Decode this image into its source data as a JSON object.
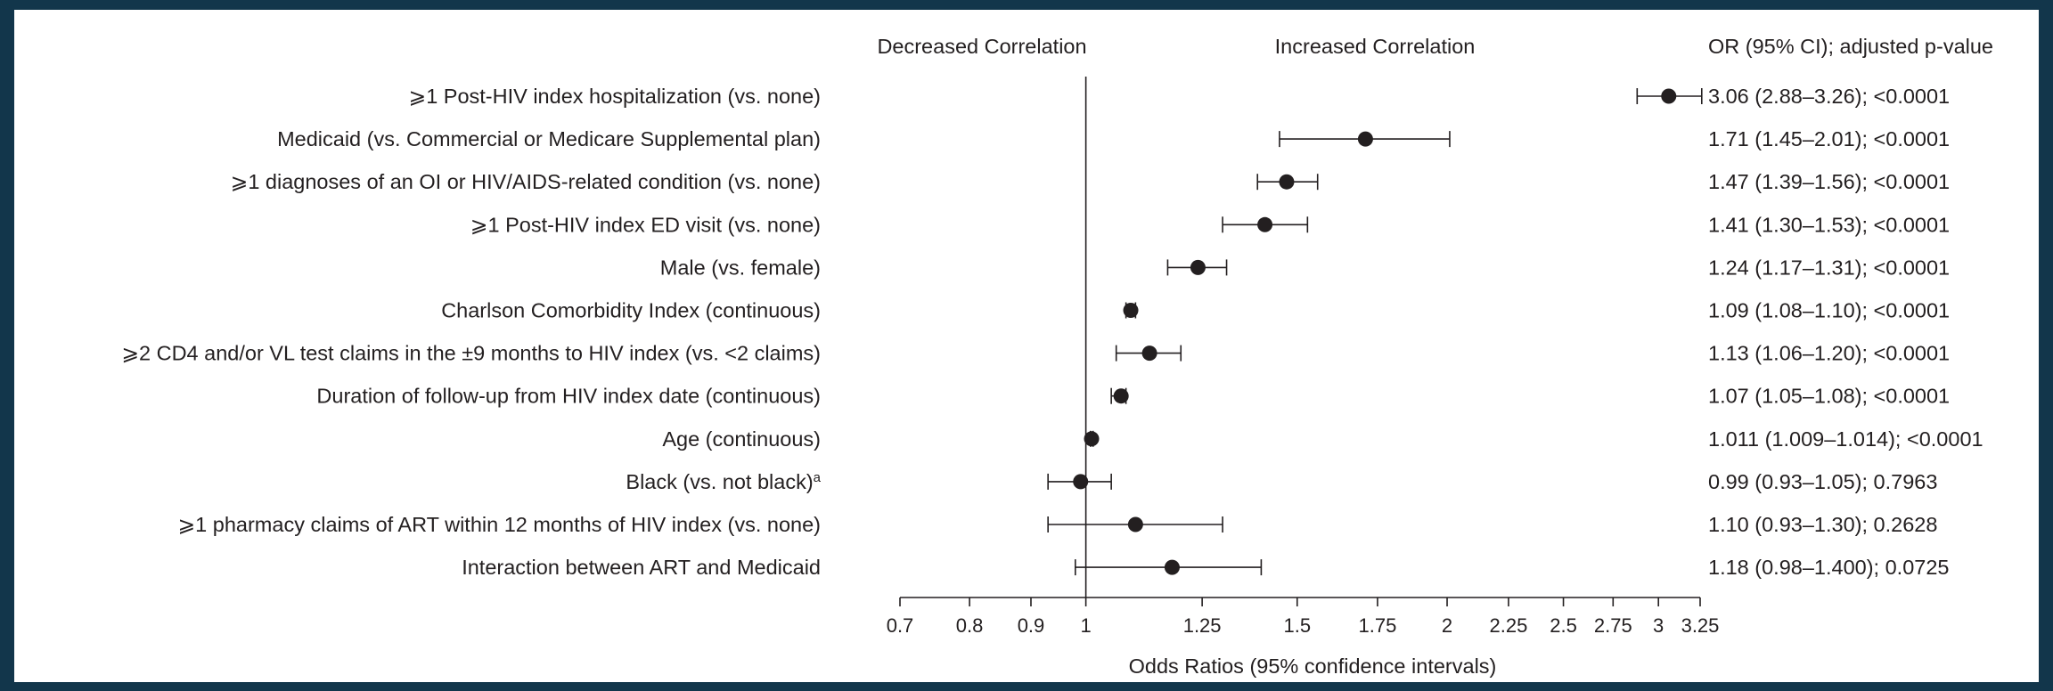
{
  "chart_data": {
    "type": "forest",
    "headers": {
      "left": "Decreased Correlation",
      "right": "Increased Correlation",
      "stats": "OR (95% CI); adjusted p-value"
    },
    "xlabel": "Odds Ratios (95% confidence intervals)",
    "x_scale": "log",
    "reference_line": 1,
    "xlim": [
      0.7,
      3.25
    ],
    "ticks": [
      {
        "value": 0.7,
        "label": "0.7"
      },
      {
        "value": 0.8,
        "label": "0.8"
      },
      {
        "value": 0.9,
        "label": "0.9"
      },
      {
        "value": 1,
        "label": "1"
      },
      {
        "value": 1.25,
        "label": "1.25"
      },
      {
        "value": 1.5,
        "label": "1.5"
      },
      {
        "value": 1.75,
        "label": "1.75"
      },
      {
        "value": 2,
        "label": "2"
      },
      {
        "value": 2.25,
        "label": "2.25"
      },
      {
        "value": 2.5,
        "label": "2.5"
      },
      {
        "value": 2.75,
        "label": "2.75"
      },
      {
        "value": 3,
        "label": "3"
      },
      {
        "value": 3.25,
        "label": "3.25"
      }
    ],
    "rows": [
      {
        "label": "⩾1 Post-HIV index hospitalization (vs. none)",
        "or": 3.06,
        "lo": 2.88,
        "hi": 3.26,
        "stat": "3.06 (2.88–3.26); <0.0001"
      },
      {
        "label": "Medicaid (vs. Commercial or Medicare Supplemental plan)",
        "or": 1.71,
        "lo": 1.45,
        "hi": 2.01,
        "stat": "1.71 (1.45–2.01); <0.0001"
      },
      {
        "label": "⩾1 diagnoses of an OI or HIV/AIDS-related condition (vs. none)",
        "or": 1.47,
        "lo": 1.39,
        "hi": 1.56,
        "stat": "1.47 (1.39–1.56); <0.0001"
      },
      {
        "label": "⩾1 Post-HIV index ED visit (vs. none)",
        "or": 1.41,
        "lo": 1.3,
        "hi": 1.53,
        "stat": "1.41 (1.30–1.53); <0.0001"
      },
      {
        "label": "Male (vs. female)",
        "or": 1.24,
        "lo": 1.17,
        "hi": 1.31,
        "stat": "1.24 (1.17–1.31); <0.0001"
      },
      {
        "label": "Charlson Comorbidity Index (continuous)",
        "or": 1.09,
        "lo": 1.08,
        "hi": 1.1,
        "stat": "1.09 (1.08–1.10); <0.0001"
      },
      {
        "label": "⩾2 CD4 and/or VL test claims in the ±9 months to HIV index (vs. <2 claims)",
        "or": 1.13,
        "lo": 1.06,
        "hi": 1.2,
        "stat": "1.13 (1.06–1.20); <0.0001"
      },
      {
        "label": "Duration of follow-up from HIV index date (continuous)",
        "or": 1.07,
        "lo": 1.05,
        "hi": 1.08,
        "stat": "1.07 (1.05–1.08); <0.0001"
      },
      {
        "label": "Age (continuous)",
        "or": 1.011,
        "lo": 1.009,
        "hi": 1.014,
        "stat": "1.011 (1.009–1.014); <0.0001"
      },
      {
        "label": "Black (vs. not black)",
        "sup": "a",
        "or": 0.99,
        "lo": 0.93,
        "hi": 1.05,
        "stat": "0.99 (0.93–1.05); 0.7963"
      },
      {
        "label": "⩾1 pharmacy claims of ART within 12 months of HIV index (vs. none)",
        "or": 1.1,
        "lo": 0.93,
        "hi": 1.3,
        "stat": "1.10 (0.93–1.30); 0.2628"
      },
      {
        "label": "Interaction between ART and Medicaid",
        "or": 1.18,
        "lo": 0.98,
        "hi": 1.4,
        "stat": "1.18 (0.98–1.400); 0.0725"
      }
    ]
  }
}
